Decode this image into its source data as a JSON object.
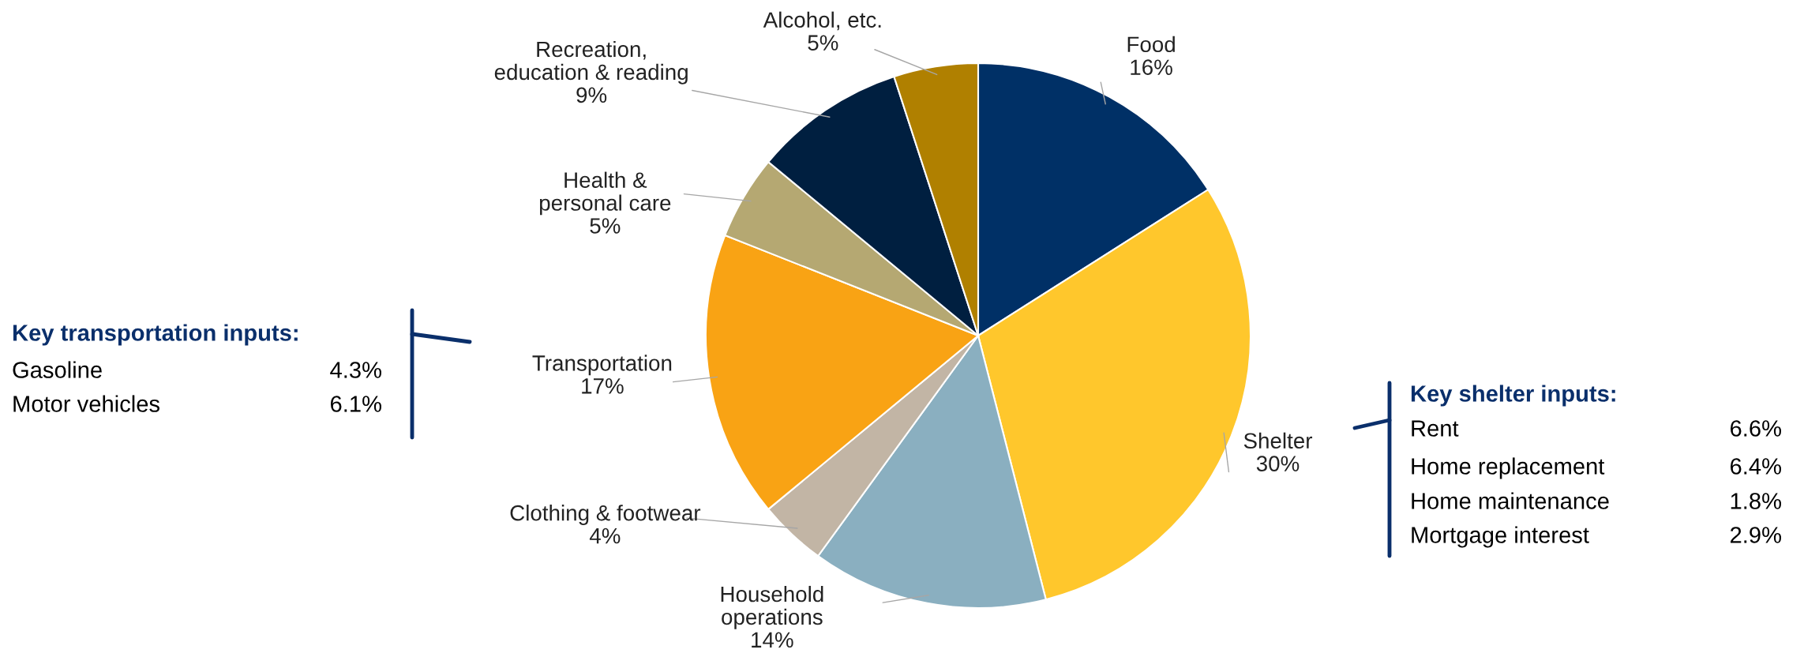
{
  "chart_data": {
    "type": "pie",
    "categories": [
      "Food",
      "Shelter",
      "Household\noperations",
      "Clothing & footwear",
      "Transportation",
      "Health &\npersonal care",
      "Recreation,\neducation & reading",
      "Alcohol, etc."
    ],
    "values": [
      16,
      30,
      14,
      4,
      17,
      5,
      9,
      5
    ],
    "value_labels": [
      "16%",
      "30%",
      "14%",
      "4%",
      "17%",
      "5%",
      "9%",
      "5%"
    ],
    "colors": [
      "#003066",
      "#ffc72c",
      "#8aafc0",
      "#c2b5a5",
      "#f9a314",
      "#b5a872",
      "#001f40",
      "#b08000"
    ],
    "annotations": [
      "Key transportation inputs:",
      "Gasoline",
      "4.3%",
      "Motor vehicles",
      "6.1%",
      "Key shelter inputs:",
      "Rent",
      "6.6%",
      "Home replacement",
      "6.4%",
      "Home maintenance",
      "1.8%",
      "Mortgage interest",
      "2.9%"
    ]
  }
}
